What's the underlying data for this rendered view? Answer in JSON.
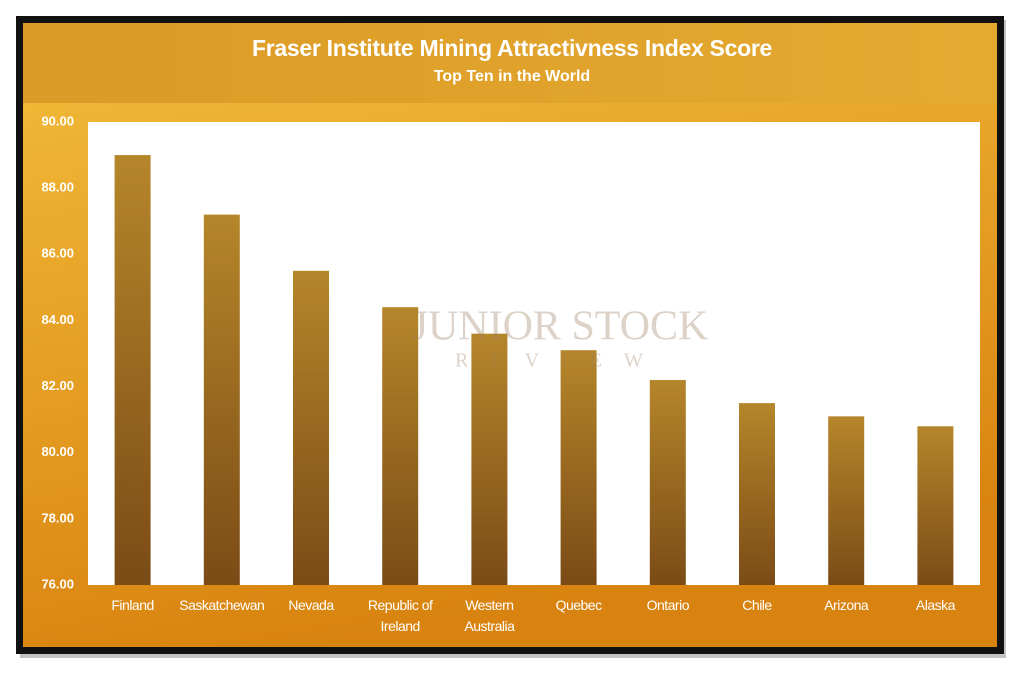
{
  "chart_data": {
    "type": "bar",
    "title": "Fraser Institute Mining Attractivness Index Score",
    "subtitle": "Top Ten in the World",
    "categories": [
      "Finland",
      "Saskatchewan",
      "Nevada",
      "Republic of Ireland",
      "Western Australia",
      "Quebec",
      "Ontario",
      "Chile",
      "Arizona",
      "Alaska"
    ],
    "values": [
      89.0,
      87.2,
      85.5,
      84.4,
      83.6,
      83.1,
      82.2,
      81.5,
      81.1,
      80.8
    ],
    "gradient": [
      "#b5862a",
      "#7b4b16"
    ],
    "ylim": [
      76,
      90
    ],
    "yticks": [
      {
        "value": 76,
        "label": "76.00"
      },
      {
        "value": 78,
        "label": "78.00"
      },
      {
        "value": 80,
        "label": "80.00"
      },
      {
        "value": 82,
        "label": "82.00"
      },
      {
        "value": 84,
        "label": "84.00"
      },
      {
        "value": 86,
        "label": "86.00"
      },
      {
        "value": 88,
        "label": "88.00"
      },
      {
        "value": 90,
        "label": "90.00"
      }
    ],
    "grid": false,
    "watermark": {
      "line1": "JUNIOR STOCK",
      "line2": "REVIEW"
    }
  }
}
